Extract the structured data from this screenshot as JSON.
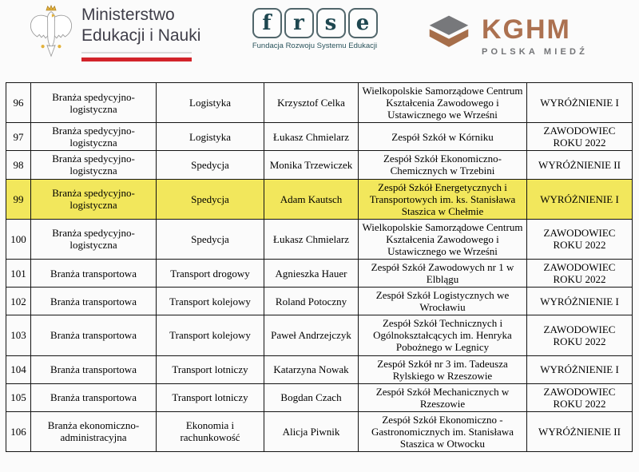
{
  "page": {
    "background": "#FBFBFB"
  },
  "header": {
    "ministry": {
      "line1": "Ministerstwo",
      "line2": "Edukacji i Nauki",
      "text_color": "#3F3E49",
      "flag_red": "#D2232A",
      "eagle_gold": "#E3B23C"
    },
    "frse": {
      "letters": [
        "f",
        "r",
        "s",
        "e"
      ],
      "subtitle": "Fundacja Rozwoju Systemu Edukacji",
      "teal": "#1E4750"
    },
    "kghm": {
      "title": "KGHM",
      "subtitle": "POLSKA MIEDŹ",
      "copper": "#AC7150",
      "gray": "#737477"
    }
  },
  "table": {
    "highlight_color": "#F2E75C",
    "columns": [
      "no",
      "branch",
      "category",
      "person",
      "school",
      "award"
    ],
    "rows": [
      {
        "no": "96",
        "branch": "Branża spedycyjno-logistyczna",
        "category": "Logistyka",
        "person": "Krzysztof Celka",
        "school": "Wielkopolskie Samorządowe Centrum Kształcenia Zawodowego i Ustawicznego we Wrześni",
        "award": "WYRÓŻNIENIE I",
        "highlight": false
      },
      {
        "no": "97",
        "branch": "Branża spedycyjno-logistyczna",
        "category": "Logistyka",
        "person": "Łukasz Chmielarz",
        "school": "Zespół Szkół w Kórniku",
        "award": "ZAWODOWIEC ROKU 2022",
        "highlight": false
      },
      {
        "no": "98",
        "branch": "Branża spedycyjno-logistyczna",
        "category": "Spedycja",
        "person": "Monika Trzewiczek",
        "school": "Zespół Szkół Ekonomiczno-Chemicznych w Trzebini",
        "award": "WYRÓŻNIENIE II",
        "highlight": false
      },
      {
        "no": "99",
        "branch": "Branża spedycyjno-logistyczna",
        "category": "Spedycja",
        "person": "Adam Kautsch",
        "school": "Zespół Szkół Energetycznych i Transportowych im. ks. Stanisława Staszica w Chełmie",
        "award": "WYRÓŻNIENIE I",
        "highlight": true
      },
      {
        "no": "100",
        "branch": "Branża spedycyjno-logistyczna",
        "category": "Spedycja",
        "person": "Łukasz Chmielarz",
        "school": "Wielkopolskie Samorządowe Centrum Kształcenia Zawodowego i Ustawicznego we Wrześni",
        "award": "ZAWODOWIEC ROKU 2022",
        "highlight": false
      },
      {
        "no": "101",
        "branch": "Branża transportowa",
        "category": "Transport drogowy",
        "person": "Agnieszka Hauer",
        "school": "Zespół Szkół Zawodowych nr 1 w Elblągu",
        "award": "ZAWODOWIEC ROKU 2022",
        "highlight": false
      },
      {
        "no": "102",
        "branch": "Branża transportowa",
        "category": "Transport kolejowy",
        "person": "Roland Potoczny",
        "school": "Zespół Szkół Logistycznych we Wrocławiu",
        "award": "WYRÓŻNIENIE I",
        "highlight": false
      },
      {
        "no": "103",
        "branch": "Branża transportowa",
        "category": "Transport kolejowy",
        "person": "Paweł Andrzejczyk",
        "school": "Zespół Szkół Technicznych i Ogólnokształcących im. Henryka Pobożnego w Legnicy",
        "award": "ZAWODOWIEC ROKU 2022",
        "highlight": false
      },
      {
        "no": "104",
        "branch": "Branża transportowa",
        "category": "Transport lotniczy",
        "person": "Katarzyna Nowak",
        "school": "Zespół Szkół nr 3 im. Tadeusza Rylskiego w Rzeszowie",
        "award": "WYRÓŻNIENIE I",
        "highlight": false
      },
      {
        "no": "105",
        "branch": "Branża transportowa",
        "category": "Transport lotniczy",
        "person": "Bogdan Czach",
        "school": "Zespół Szkół Mechanicznych w Rzeszowie",
        "award": "ZAWODOWIEC ROKU 2022",
        "highlight": false
      },
      {
        "no": "106",
        "branch": "Branża ekonomiczno-administracyjna",
        "category": "Ekonomia i rachunkowość",
        "person": "Alicja Piwnik",
        "school": "Zespół Szkół Ekonomiczno - Gastronomicznych im. Stanisława Staszica w Otwocku",
        "award": "WYRÓŻNIENIE II",
        "highlight": false
      }
    ]
  }
}
